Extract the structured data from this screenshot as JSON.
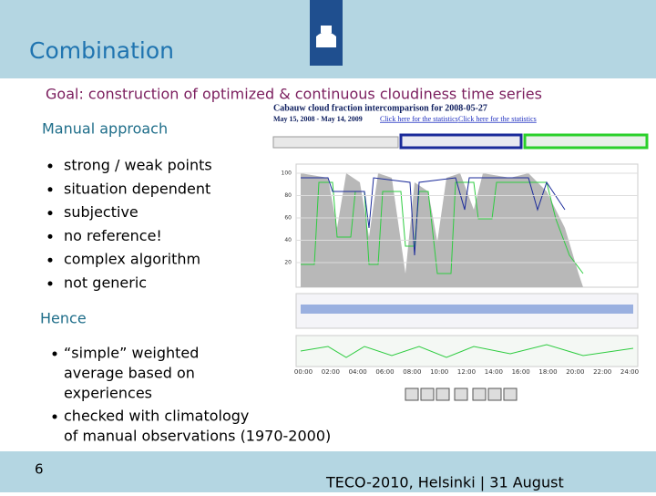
{
  "header": {
    "title": "Combination"
  },
  "goal": "Goal: construction of optimized & continuous cloudiness time series",
  "manual": {
    "heading": "Manual approach",
    "bullets": [
      "strong / weak points",
      "situation dependent",
      "subjective",
      "no reference!",
      "complex algorithm",
      "not generic"
    ]
  },
  "hence": {
    "heading": "Hence",
    "bullets": [
      [
        "“simple” weighted",
        "average based on",
        "experiences"
      ],
      [
        "checked with climatology",
        "of manual observations (1970-2000)"
      ]
    ]
  },
  "screenshot": {
    "title": "Cabauw cloud fraction intercomparison for 2008-05-27",
    "period": "May 15, 2008 - May 14, 2009",
    "links": [
      "Click here for the statistics",
      "Click here for the statistics"
    ],
    "yticks": [
      "100",
      "80",
      "60",
      "40",
      "20"
    ],
    "xticks": [
      "00:00",
      "02:00",
      "04:00",
      "06:00",
      "08:00",
      "10:00",
      "12:00",
      "14:00",
      "16:00",
      "18:00",
      "20:00",
      "22:00",
      "24:00"
    ]
  },
  "footer": {
    "page": "6",
    "event": "TECO-2010, Helsinki | 31 August"
  }
}
